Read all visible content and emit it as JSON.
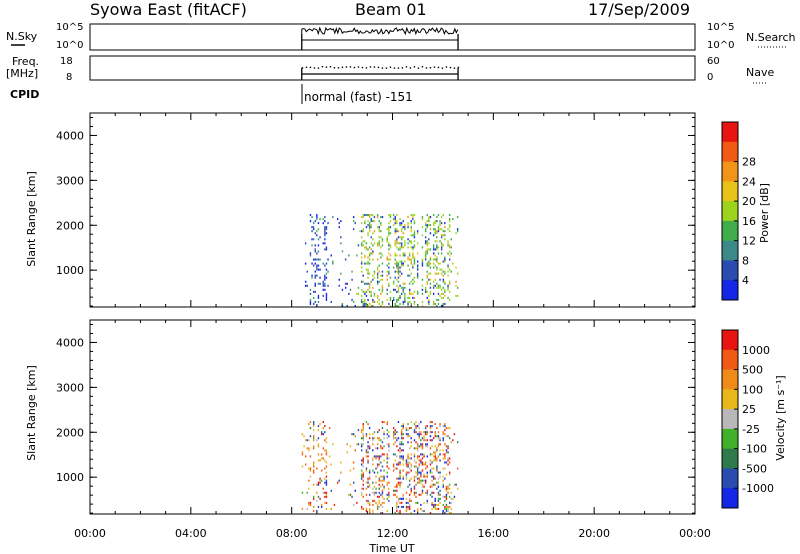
{
  "header": {
    "site": "Syowa East (fitACF)",
    "beam": "Beam 01",
    "date": "17/Sep/2009"
  },
  "left_labels": {
    "nsky": "N.Sky",
    "freq_top": "Freq.",
    "freq_unit": "[MHz]",
    "cpid": "CPID"
  },
  "right_labels": {
    "nsearch": "N.Search",
    "nave": "Nave"
  },
  "noise_panel": {
    "left_ticks": [
      "10^5",
      "10^0"
    ],
    "right_ticks": [
      "10^5",
      "10^0"
    ]
  },
  "freq_panel": {
    "left_ticks": [
      "18",
      "8"
    ],
    "right_ticks": [
      "60",
      "0"
    ]
  },
  "cpid_text": "normal (fast) -151",
  "x_axis": {
    "label": "Time UT",
    "ticks": [
      "00:00",
      "04:00",
      "08:00",
      "12:00",
      "16:00",
      "20:00",
      "00:00"
    ]
  },
  "chart_data": [
    {
      "type": "heatmap",
      "name": "power",
      "ylabel": "Slant Range [km]",
      "yticks": [
        1000,
        2000,
        3000,
        4000
      ],
      "ylim": [
        180,
        4500
      ],
      "xlim_hours": [
        0,
        24
      ],
      "data_window_hours": [
        8.4,
        14.6
      ],
      "data_range_km": [
        180,
        2250
      ],
      "colorbar": {
        "label": "Power [dB]",
        "ticks": [
          "4",
          "8",
          "12",
          "16",
          "20",
          "24",
          "28"
        ],
        "colors": [
          "#1426e6",
          "#2a4bb0",
          "#3b8a8a",
          "#3fae4a",
          "#9bd31d",
          "#e6c21a",
          "#f2931a",
          "#f05a14",
          "#e8140f"
        ]
      }
    },
    {
      "type": "heatmap",
      "name": "velocity",
      "ylabel": "Slant Range [km]",
      "yticks": [
        1000,
        2000,
        3000,
        4000
      ],
      "ylim": [
        180,
        4500
      ],
      "xlim_hours": [
        0,
        24
      ],
      "data_window_hours": [
        8.4,
        14.6
      ],
      "data_range_km": [
        180,
        2250
      ],
      "colorbar": {
        "label": "Velocity [m s⁻¹]",
        "ticks": [
          "1000",
          "500",
          "100",
          "25",
          "-25",
          "-100",
          "-500",
          "-1000"
        ],
        "colors": [
          "#1426e6",
          "#2a4bb0",
          "#2f7a4a",
          "#43b02a",
          "#b8b8b8",
          "#e8b81a",
          "#f08a18",
          "#f05a14",
          "#e8140f"
        ]
      }
    }
  ]
}
